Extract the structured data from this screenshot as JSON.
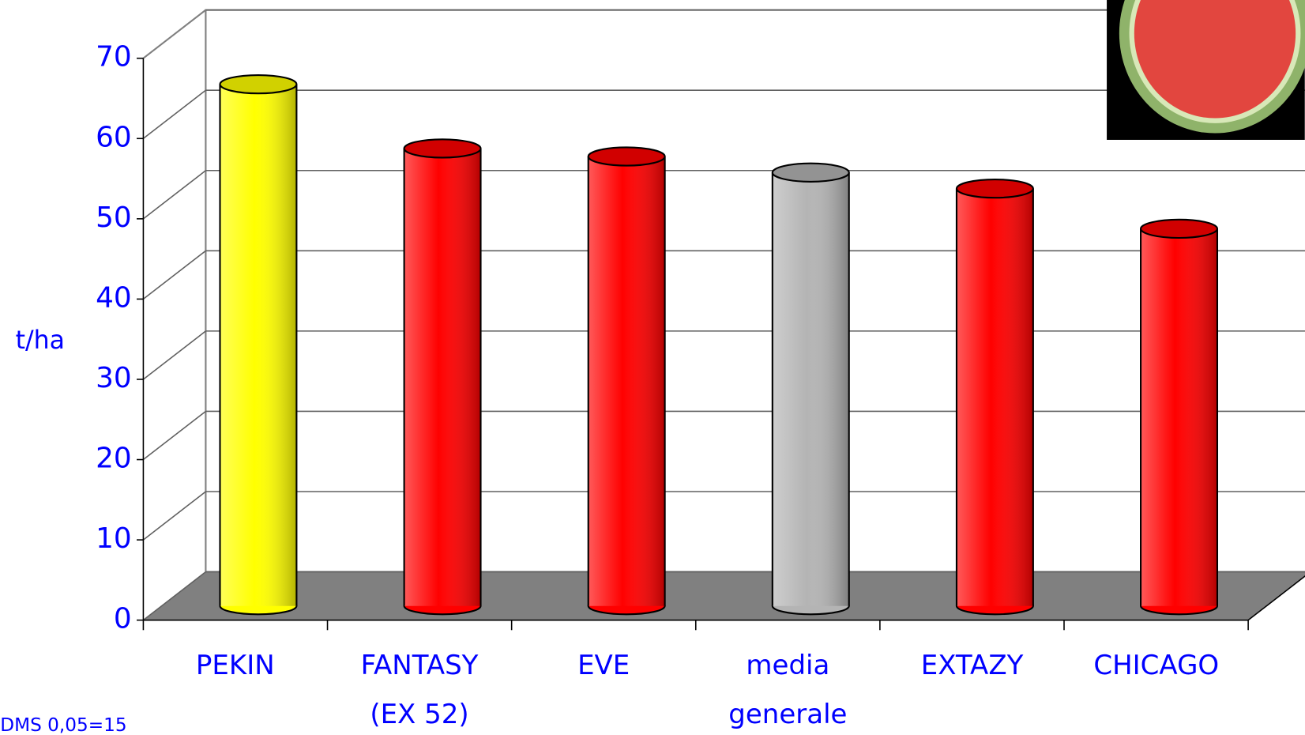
{
  "chart_data": {
    "type": "bar3d",
    "y_label": "t/ha",
    "note": "DMS 0,05=15",
    "categories": [
      "PEKIN",
      "FANTASY\n(EX 52)",
      "EVE",
      "media\ngenerale",
      "EXTAZY",
      "CHICAGO"
    ],
    "values": [
      65,
      57,
      56,
      54,
      52,
      47
    ],
    "colors": [
      "#ffff00",
      "#ff0000",
      "#ff0000",
      "#b4b4b4",
      "#ff0000",
      "#ff0000"
    ],
    "ylim": [
      0,
      70
    ],
    "yticks": [
      0,
      10,
      20,
      30,
      40,
      50,
      60,
      70
    ],
    "grid": true
  }
}
